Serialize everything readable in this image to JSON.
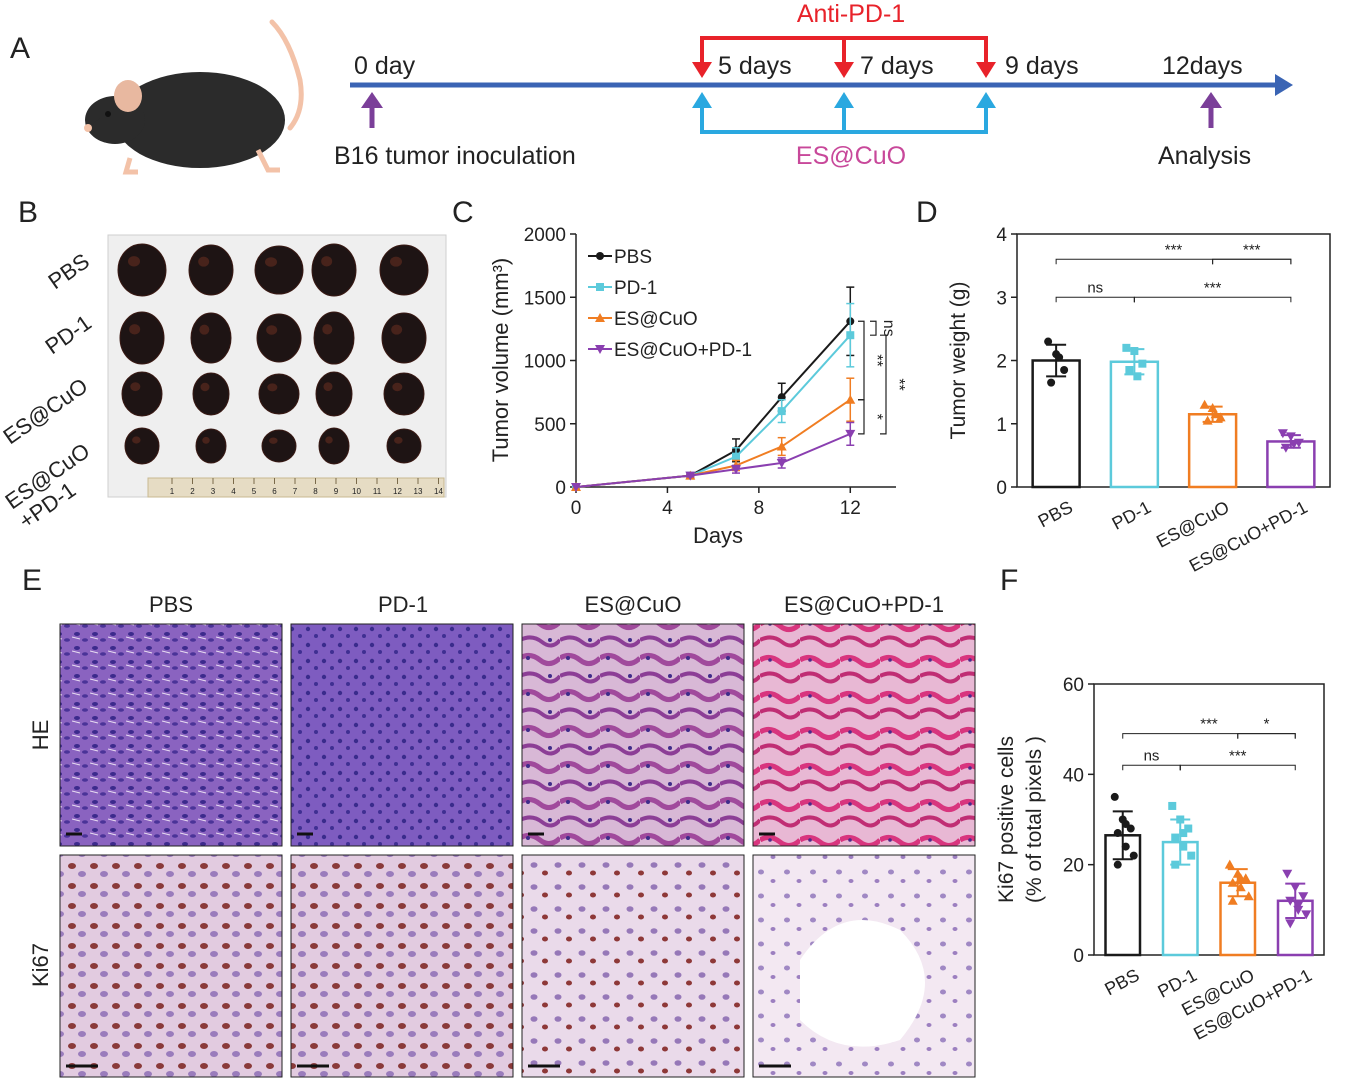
{
  "panels": {
    "A": "A",
    "B": "B",
    "C": "C",
    "D": "D",
    "E": "E",
    "F": "F"
  },
  "colors": {
    "timeline": "#3a64b4",
    "anti_pd1": "#e8222a",
    "es_cuo_arrow": "#2aa8e0",
    "purple_arrow": "#7b3f99",
    "es_cuo_text": "#c8489a",
    "pbs": "#1a1a1a",
    "pd1": "#5ccadb",
    "escuo": "#f07d22",
    "combo": "#8a3fb0"
  },
  "timeline": {
    "day_labels": [
      "0 day",
      "5 days",
      "7 days",
      "9 days",
      "12days"
    ],
    "anti_pd1_label": "Anti-PD-1",
    "es_cuo_label": "ES@CuO",
    "inoculation_label": "B16 tumor inoculation",
    "analysis_label": "Analysis"
  },
  "tumor_photo": {
    "row_labels": [
      "PBS",
      "PD-1",
      "ES@CuO",
      "ES@CuO\n+PD-1"
    ],
    "ruler_numbers": [
      "1",
      "2",
      "3",
      "4",
      "5",
      "6",
      "7",
      "8",
      "9",
      "10",
      "11",
      "12",
      "13",
      "14"
    ]
  },
  "chart_data": [
    {
      "type": "line",
      "panel": "C",
      "xlabel": "Days",
      "ylabel": "Tumor volume (mm³)",
      "xlim": [
        0,
        14
      ],
      "ylim": [
        0,
        2000
      ],
      "x_ticks": [
        "0",
        "4",
        "8",
        "12"
      ],
      "y_ticks": [
        "0",
        "500",
        "1000",
        "1500",
        "2000"
      ],
      "legend_position": "top-left",
      "x": [
        0,
        5,
        7,
        9,
        12
      ],
      "series": [
        {
          "name": "PBS",
          "values": [
            0,
            90,
            290,
            710,
            1310
          ],
          "errors": [
            0,
            10,
            90,
            110,
            270
          ]
        },
        {
          "name": "PD-1",
          "values": [
            0,
            90,
            240,
            600,
            1200
          ],
          "errors": [
            0,
            10,
            70,
            90,
            250
          ]
        },
        {
          "name": "ES@CuO",
          "values": [
            0,
            90,
            170,
            320,
            690
          ],
          "errors": [
            0,
            10,
            40,
            70,
            170
          ]
        },
        {
          "name": "ES@CuO+PD-1",
          "values": [
            0,
            90,
            140,
            190,
            420
          ],
          "errors": [
            0,
            10,
            30,
            40,
            90
          ]
        }
      ],
      "significance": [
        "ns",
        "**",
        "**",
        "*"
      ]
    },
    {
      "type": "bar",
      "panel": "D",
      "ylabel": "Tumor weight (g)",
      "categories": [
        "PBS",
        "PD-1",
        "ES@CuO",
        "ES@CuO+PD-1"
      ],
      "values": [
        2.0,
        1.98,
        1.15,
        0.72
      ],
      "errors": [
        0.25,
        0.2,
        0.12,
        0.1
      ],
      "points": [
        [
          2.3,
          2.1,
          1.85,
          1.65,
          2.05
        ],
        [
          2.2,
          2.15,
          1.95,
          1.85,
          1.75
        ],
        [
          1.3,
          1.25,
          1.1,
          1.05,
          1.15
        ],
        [
          0.85,
          0.8,
          0.7,
          0.62,
          0.68
        ]
      ],
      "ylim": [
        0,
        4
      ],
      "y_ticks": [
        "0",
        "1",
        "2",
        "3",
        "4"
      ],
      "significance": [
        {
          "label": "***",
          "from": 0,
          "to": 3,
          "y": 3.6
        },
        {
          "label": "***",
          "from": 2,
          "to": 3,
          "y": 3.6
        },
        {
          "label": "ns",
          "from": 0,
          "to": 1,
          "y": 3.0
        },
        {
          "label": "***",
          "from": 1,
          "to": 3,
          "y": 3.0
        }
      ]
    },
    {
      "type": "bar",
      "panel": "F",
      "ylabel": "Ki67 positive cells\n(% of total pixels )",
      "categories": [
        "PBS",
        "PD-1",
        "ES@CuO",
        "ES@CuO+PD-1"
      ],
      "values": [
        26.5,
        25.0,
        16.0,
        12.0
      ],
      "errors": [
        5.3,
        5.0,
        3.0,
        3.8
      ],
      "points": [
        [
          35,
          30,
          28,
          27,
          24,
          22,
          20,
          29
        ],
        [
          33,
          30,
          28,
          26,
          24,
          22,
          20,
          27
        ],
        [
          20,
          18,
          17,
          16,
          15,
          13,
          12,
          17
        ],
        [
          18,
          15,
          13,
          12,
          11,
          9,
          7,
          10
        ]
      ],
      "ylim": [
        0,
        60
      ],
      "y_ticks": [
        "0",
        "20",
        "40",
        "60"
      ],
      "significance": [
        {
          "label": "***",
          "from": 0,
          "to": 3,
          "y": 49
        },
        {
          "label": "*",
          "from": 2,
          "to": 3,
          "y": 49
        },
        {
          "label": "ns",
          "from": 0,
          "to": 1,
          "y": 42
        },
        {
          "label": "***",
          "from": 1,
          "to": 3,
          "y": 42
        }
      ]
    }
  ],
  "histology": {
    "column_labels": [
      "PBS",
      "PD-1",
      "ES@CuO",
      "ES@CuO+PD-1"
    ],
    "row_labels": [
      "HE",
      "Ki67"
    ]
  }
}
